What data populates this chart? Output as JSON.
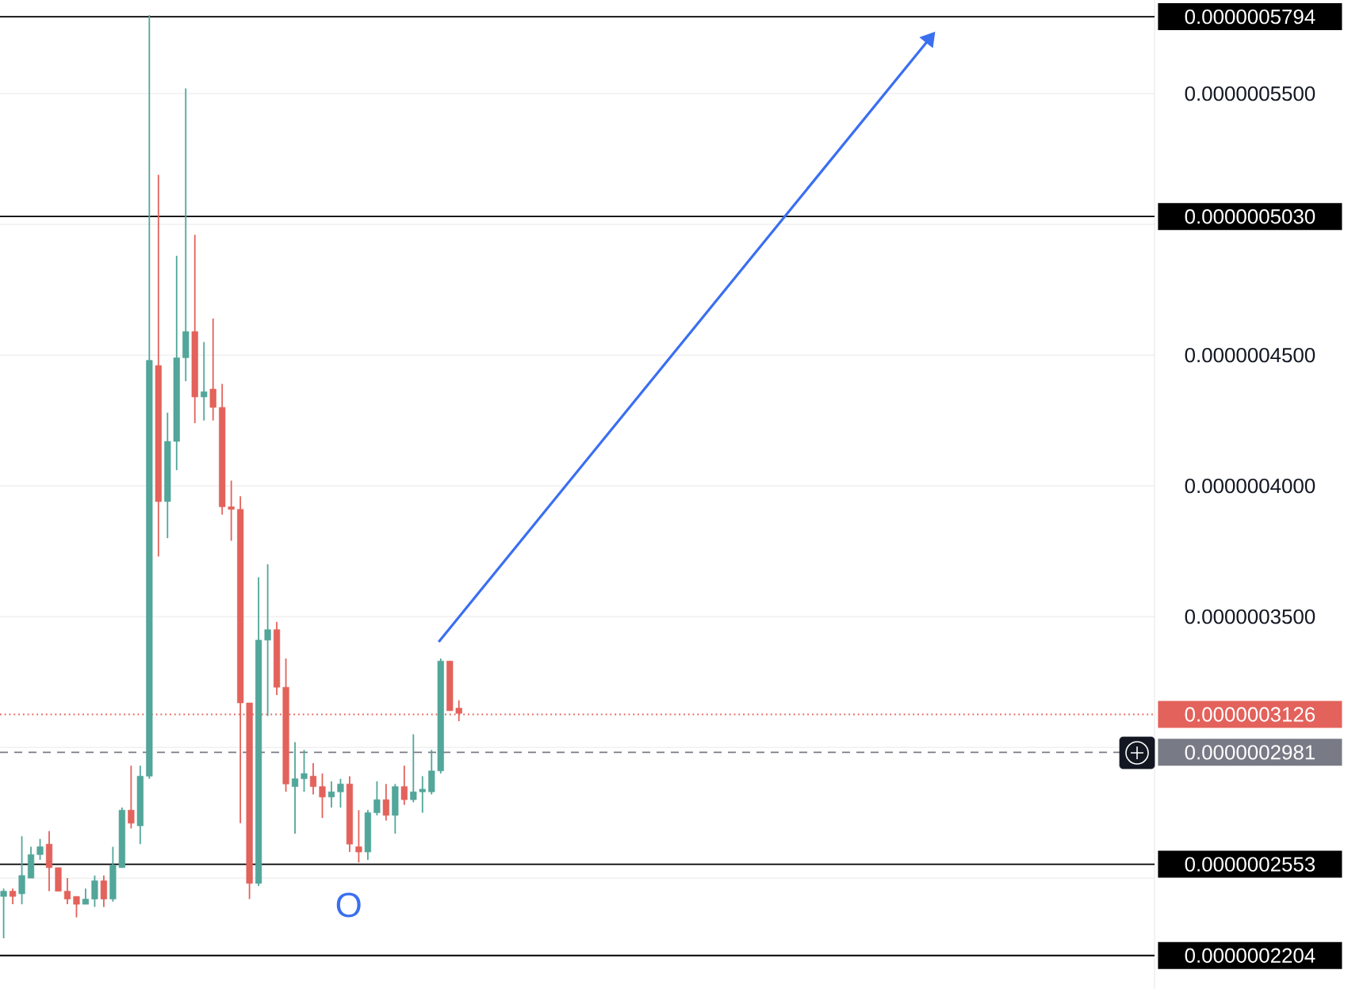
{
  "chart_data": {
    "type": "candlestick",
    "categories": [
      null,
      null,
      null,
      null,
      null,
      null,
      null,
      null,
      null,
      null,
      null,
      null,
      null,
      null,
      null,
      null,
      null,
      null,
      null,
      null,
      null,
      null,
      null,
      null,
      null,
      null,
      null,
      null,
      null,
      null,
      null,
      null,
      null,
      null,
      null,
      null,
      null,
      null,
      null,
      null,
      null,
      null,
      null,
      null,
      null,
      null,
      null,
      null,
      null,
      null,
      null,
      null,
      null,
      null,
      null,
      null,
      null,
      null,
      null,
      null,
      null,
      null,
      null,
      null,
      null,
      null,
      null,
      null,
      null,
      null,
      null,
      null,
      null,
      null,
      null,
      null,
      null,
      null,
      null,
      null,
      null,
      null,
      null,
      null,
      null,
      null,
      null,
      null,
      null,
      null,
      null,
      null,
      null,
      null,
      null,
      null,
      null,
      null,
      null,
      null,
      null,
      null,
      null,
      null,
      null,
      null,
      null,
      null,
      null,
      null,
      null,
      null,
      null,
      null,
      null,
      null,
      null,
      null,
      null,
      null,
      null,
      null,
      null,
      null,
      null,
      null,
      null
    ],
    "ohlc": [
      [
        2.43e-07,
        2.46e-07,
        2.27e-07,
        2.45e-07
      ],
      [
        2.45e-07,
        2.46e-07,
        2.4e-07,
        2.43e-07
      ],
      [
        2.44e-07,
        2.66e-07,
        2.4e-07,
        2.51e-07
      ],
      [
        2.5e-07,
        2.62e-07,
        2.5e-07,
        2.59e-07
      ],
      [
        2.59e-07,
        2.65e-07,
        2.57e-07,
        2.62e-07
      ],
      [
        2.63e-07,
        2.68e-07,
        2.45e-07,
        2.54e-07
      ],
      [
        2.54e-07,
        2.54e-07,
        2.45e-07,
        2.45e-07
      ],
      [
        2.45e-07,
        2.5e-07,
        2.4e-07,
        2.42e-07
      ],
      [
        2.43e-07,
        2.43e-07,
        2.35e-07,
        2.4e-07
      ],
      [
        2.4e-07,
        2.46e-07,
        2.4e-07,
        2.42e-07
      ],
      [
        2.42e-07,
        2.51e-07,
        2.39e-07,
        2.49e-07
      ],
      [
        2.49e-07,
        2.51e-07,
        2.39e-07,
        2.42e-07
      ],
      [
        2.42e-07,
        2.62e-07,
        2.41e-07,
        2.55e-07
      ],
      [
        2.54e-07,
        2.77e-07,
        2.54e-07,
        2.76e-07
      ],
      [
        2.76e-07,
        2.93e-07,
        2.69e-07,
        2.71e-07
      ],
      [
        2.7e-07,
        2.93e-07,
        2.63e-07,
        2.89e-07
      ],
      [
        2.89e-07,
        5.8e-07,
        2.88e-07,
        4.48e-07
      ],
      [
        4.46e-07,
        5.19e-07,
        3.73e-07,
        3.94e-07
      ],
      [
        3.94e-07,
        4.28e-07,
        3.8e-07,
        4.17e-07
      ],
      [
        4.17e-07,
        4.88e-07,
        4.06e-07,
        4.49e-07
      ],
      [
        4.49e-07,
        5.52e-07,
        4.4e-07,
        4.59e-07
      ],
      [
        4.59e-07,
        4.96e-07,
        4.24e-07,
        4.34e-07
      ],
      [
        4.34e-07,
        4.55e-07,
        4.25e-07,
        4.36e-07
      ],
      [
        4.37e-07,
        4.64e-07,
        4.25e-07,
        4.3e-07
      ],
      [
        4.3e-07,
        4.39e-07,
        3.89e-07,
        3.92e-07
      ],
      [
        3.92e-07,
        4.02e-07,
        3.79e-07,
        3.91e-07
      ],
      [
        3.91e-07,
        3.96e-07,
        2.71e-07,
        3.17e-07
      ],
      [
        3.17e-07,
        3.17e-07,
        2.42e-07,
        2.48e-07
      ],
      [
        2.48e-07,
        3.65e-07,
        2.47e-07,
        3.41e-07
      ],
      [
        3.41e-07,
        3.7e-07,
        3.12e-07,
        3.45e-07
      ],
      [
        3.45e-07,
        3.48e-07,
        3.2e-07,
        3.23e-07
      ],
      [
        3.23e-07,
        3.34e-07,
        2.83e-07,
        2.86e-07
      ],
      [
        2.85e-07,
        3.02e-07,
        2.67e-07,
        2.88e-07
      ],
      [
        2.88e-07,
        2.99e-07,
        2.83e-07,
        2.9e-07
      ],
      [
        2.89e-07,
        2.94e-07,
        2.82e-07,
        2.85e-07
      ],
      [
        2.85e-07,
        2.9e-07,
        2.73e-07,
        2.81e-07
      ],
      [
        2.81e-07,
        2.87e-07,
        2.77e-07,
        2.83e-07
      ],
      [
        2.83e-07,
        2.88e-07,
        2.77e-07,
        2.86e-07
      ],
      [
        2.86e-07,
        2.89e-07,
        2.6e-07,
        2.63e-07
      ],
      [
        2.62e-07,
        2.76e-07,
        2.56e-07,
        2.6e-07
      ],
      [
        2.6e-07,
        2.76e-07,
        2.57e-07,
        2.75e-07
      ],
      [
        2.75e-07,
        2.87e-07,
        2.74e-07,
        2.8e-07
      ],
      [
        2.8e-07,
        2.86e-07,
        2.72e-07,
        2.74e-07
      ],
      [
        2.74e-07,
        2.86e-07,
        2.67e-07,
        2.85e-07
      ],
      [
        2.85e-07,
        2.93e-07,
        2.78e-07,
        2.8e-07
      ],
      [
        2.8e-07,
        3.05e-07,
        2.79e-07,
        2.83e-07
      ],
      [
        2.83e-07,
        2.89e-07,
        2.75e-07,
        2.84e-07
      ],
      [
        2.83e-07,
        2.99e-07,
        2.82e-07,
        2.91e-07
      ],
      [
        2.91e-07,
        3.34e-07,
        2.9e-07,
        3.33e-07
      ],
      [
        3.33e-07,
        3.33e-07,
        3.14e-07,
        3.14e-07
      ],
      [
        3.15e-07,
        3.18e-07,
        3.1e-07,
        3.13e-07
      ],
      null,
      null,
      null,
      null,
      null,
      null,
      null,
      null,
      null,
      null,
      null,
      null,
      null,
      null,
      null,
      null,
      null,
      null,
      null,
      null,
      null,
      null,
      null,
      null,
      null,
      null,
      null,
      null,
      null,
      null,
      null,
      null,
      null,
      null,
      null,
      null,
      null,
      null,
      null,
      null,
      null,
      null,
      null,
      null,
      null,
      null,
      null,
      null,
      null,
      null,
      null,
      null,
      null,
      null,
      null,
      null,
      null,
      null,
      null,
      null,
      null,
      null,
      null,
      null,
      null,
      null,
      null,
      null,
      null,
      null,
      null,
      null,
      null,
      null,
      null,
      null
    ],
    "colors": [
      "#52a69a",
      "#e3625b",
      "#52a69a",
      "#52a69a",
      "#52a69a",
      "#e3625b",
      "#e3625b",
      "#e3625b",
      "#e3625b",
      "#52a69a",
      "#52a69a",
      "#e3625b",
      "#52a69a",
      "#52a69a",
      "#e3625b",
      "#52a69a",
      "#52a69a",
      "#e3625b",
      "#52a69a",
      "#52a69a",
      "#52a69a",
      "#e3625b",
      "#52a69a",
      "#e3625b",
      "#e3625b",
      "#e3625b",
      "#e3625b",
      "#e3625b",
      "#52a69a",
      "#52a69a",
      "#e3625b",
      "#e3625b",
      "#52a69a",
      "#52a69a",
      "#e3625b",
      "#e3625b",
      "#52a69a",
      "#52a69a",
      "#e3625b",
      "#e3625b",
      "#52a69a",
      "#52a69a",
      "#e3625b",
      "#52a69a",
      "#e3625b",
      "#52a69a",
      "#52a69a",
      "#52a69a",
      "#52a69a",
      "#e3625b",
      "#e3625b",
      null,
      null,
      null,
      null,
      null,
      null,
      null,
      null,
      null,
      null,
      null,
      null,
      null,
      null,
      null,
      null,
      null,
      null,
      null,
      null,
      null,
      null,
      null,
      null,
      null,
      null,
      null,
      null,
      null,
      null,
      null,
      null,
      null,
      null,
      null,
      null,
      null,
      null,
      null,
      null,
      null,
      null,
      null,
      null,
      null,
      null,
      null,
      null,
      null,
      null,
      null,
      null,
      null,
      null,
      null,
      null,
      null,
      null,
      null,
      null,
      null,
      null,
      null,
      null,
      null,
      null,
      null,
      null,
      null,
      null,
      null,
      null,
      null,
      null,
      null,
      null
    ],
    "ylim": [
      2.076e-07,
      5.858e-07
    ],
    "yticks": [
      {
        "value": 2.5e-07,
        "label": null
      },
      {
        "value": 3e-07,
        "label": null
      },
      {
        "value": 3.5e-07,
        "label": "0.0000003500"
      },
      {
        "value": 4e-07,
        "label": "0.0000004000"
      },
      {
        "value": 4.5e-07,
        "label": "0.0000004500"
      },
      {
        "value": 5e-07,
        "label": null
      },
      {
        "value": 5.5e-07,
        "label": "0.0000005500"
      }
    ],
    "grid": "y",
    "ref_lines": [
      {
        "axis": "y",
        "value": 5.794e-07,
        "label": "0.0000005794",
        "color": "#000000",
        "line_style": "solid"
      },
      {
        "axis": "y",
        "value": 5.03e-07,
        "label": "0.0000005030",
        "color": "#000000",
        "line_style": "solid"
      },
      {
        "axis": "y",
        "value": 3.126e-07,
        "label": "0.0000003126",
        "color": "#e3625b",
        "line_style": "dotted"
      },
      {
        "axis": "y",
        "value": 2.981e-07,
        "label": "0.0000002981",
        "color": "#787b86",
        "line_style": "dashed"
      },
      {
        "axis": "y",
        "value": 2.553e-07,
        "label": "0.0000002553",
        "color": "#000000",
        "line_style": "solid"
      },
      {
        "axis": "y",
        "value": 2.204e-07,
        "label": "0.0000002204",
        "color": "#000000",
        "line_style": "solid"
      }
    ],
    "annotations": [
      "O"
    ]
  }
}
